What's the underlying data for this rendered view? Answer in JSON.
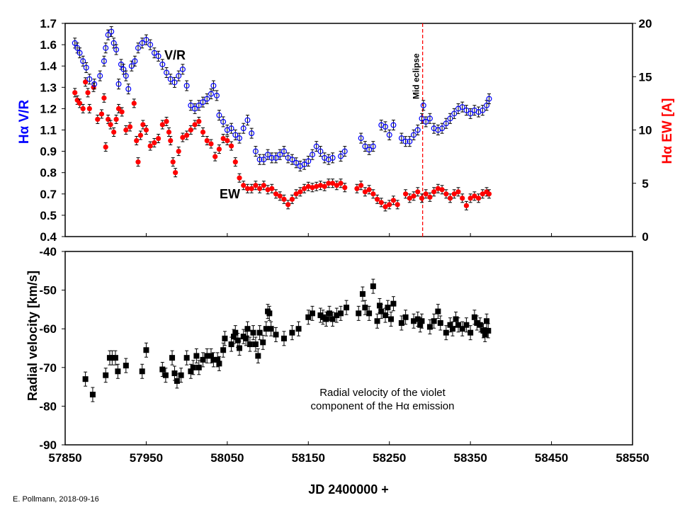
{
  "credit": "E. Pollmann, 2018-09-16",
  "colors": {
    "vr": "#0000ff",
    "ew": "#ff0000",
    "rv": "#000000",
    "eclipse_line": "#ff0000"
  },
  "chart_data": [
    {
      "type": "scatter",
      "panel": "top",
      "xlabel": "",
      "ylabel": "Hα V/R",
      "ylabel_right": "Hα EW [A]",
      "xlim": [
        57850,
        58550
      ],
      "ylim": [
        0.4,
        1.7
      ],
      "ylim_right": [
        0,
        20
      ],
      "ytick_labels": [
        "1.7",
        "1.6",
        "1.4",
        "1.3",
        "1.2",
        "1.1",
        "0.9",
        "0.8",
        "0.7",
        "0.5",
        "0.4"
      ],
      "ytick_labels_right": [
        "20",
        "15",
        "10",
        "5",
        "0"
      ],
      "grid": false,
      "annotations": {
        "vr_label": "V/R",
        "ew_label": "EW",
        "mid_eclipse": "Mid eclipse"
      },
      "mid_eclipse_jd": 58291,
      "series": [
        {
          "name": "V/R",
          "axis": "left",
          "marker": "open-circle",
          "x": [
            57862,
            57865,
            57868,
            57872,
            57876,
            57880,
            57886,
            57893,
            57898,
            57900,
            57903,
            57907,
            57910,
            57913,
            57916,
            57919,
            57922,
            57925,
            57928,
            57932,
            57936,
            57940,
            57945,
            57950,
            57955,
            57960,
            57965,
            57970,
            57975,
            57980,
            57985,
            57990,
            57995,
            58000,
            58005,
            58010,
            58015,
            58020,
            58025,
            58030,
            58033,
            58037,
            58040,
            58045,
            58050,
            58055,
            58060,
            58065,
            58070,
            58075,
            58080,
            58085,
            58090,
            58095,
            58100,
            58105,
            58110,
            58115,
            58120,
            58125,
            58130,
            58135,
            58140,
            58145,
            58150,
            58155,
            58160,
            58165,
            58170,
            58175,
            58180,
            58190,
            58195,
            58215,
            58220,
            58225,
            58230,
            58240,
            58245,
            58250,
            58255,
            58265,
            58270,
            58275,
            58280,
            58285,
            58290,
            58292,
            58295,
            58300,
            58305,
            58310,
            58315,
            58320,
            58325,
            58330,
            58335,
            58340,
            58345,
            58350,
            58355,
            58360,
            58365,
            58370,
            58373
          ],
          "y": [
            1.58,
            1.55,
            1.52,
            1.47,
            1.43,
            1.36,
            1.33,
            1.38,
            1.47,
            1.55,
            1.63,
            1.65,
            1.58,
            1.54,
            1.33,
            1.45,
            1.42,
            1.38,
            1.3,
            1.44,
            1.47,
            1.55,
            1.58,
            1.6,
            1.57,
            1.52,
            1.5,
            1.45,
            1.4,
            1.36,
            1.34,
            1.38,
            1.42,
            1.32,
            1.2,
            1.18,
            1.2,
            1.22,
            1.24,
            1.27,
            1.32,
            1.26,
            1.14,
            1.1,
            1.05,
            1.06,
            1.02,
            1.0,
            1.06,
            1.11,
            1.03,
            0.92,
            0.87,
            0.87,
            0.9,
            0.88,
            0.88,
            0.9,
            0.92,
            0.88,
            0.87,
            0.85,
            0.83,
            0.84,
            0.86,
            0.9,
            0.95,
            0.92,
            0.88,
            0.87,
            0.88,
            0.89,
            0.92,
            1.0,
            0.95,
            0.93,
            0.95,
            1.08,
            1.07,
            1.02,
            1.08,
            1.0,
            0.98,
            0.98,
            1.02,
            1.05,
            1.12,
            1.2,
            1.1,
            1.12,
            1.06,
            1.05,
            1.06,
            1.09,
            1.12,
            1.15,
            1.18,
            1.19,
            1.17,
            1.15,
            1.17,
            1.16,
            1.17,
            1.2,
            1.24
          ]
        },
        {
          "name": "EW",
          "axis": "right",
          "marker": "filled-circle",
          "x": [
            57862,
            57865,
            57868,
            57872,
            57875,
            57878,
            57880,
            57885,
            57890,
            57895,
            57898,
            57900,
            57903,
            57906,
            57910,
            57913,
            57916,
            57920,
            57925,
            57930,
            57935,
            57938,
            57940,
            57943,
            57946,
            57950,
            57955,
            57960,
            57965,
            57970,
            57975,
            57978,
            57980,
            57983,
            57986,
            57990,
            57995,
            58000,
            58005,
            58010,
            58015,
            58020,
            58025,
            58030,
            58035,
            58040,
            58045,
            58050,
            58055,
            58060,
            58065,
            58070,
            58075,
            58080,
            58085,
            58090,
            58095,
            58100,
            58105,
            58110,
            58115,
            58120,
            58125,
            58130,
            58135,
            58140,
            58145,
            58150,
            58155,
            58160,
            58165,
            58170,
            58175,
            58180,
            58185,
            58190,
            58195,
            58210,
            58215,
            58220,
            58225,
            58230,
            58235,
            58240,
            58245,
            58250,
            58255,
            58260,
            58270,
            58275,
            58280,
            58285,
            58290,
            58295,
            58300,
            58305,
            58310,
            58315,
            58320,
            58325,
            58330,
            58335,
            58340,
            58345,
            58350,
            58355,
            58360,
            58365,
            58370,
            58373
          ],
          "y": [
            13.5,
            12.8,
            12.5,
            12.0,
            14.5,
            13.5,
            12.0,
            14.0,
            11.0,
            11.5,
            13.0,
            8.4,
            11.0,
            10.5,
            9.8,
            11.0,
            12.0,
            11.7,
            10.0,
            10.3,
            12.5,
            9.0,
            7.0,
            9.5,
            10.5,
            10.0,
            8.5,
            8.8,
            9.2,
            10.5,
            10.8,
            9.8,
            9.0,
            7.0,
            6.0,
            8.0,
            9.3,
            9.5,
            10.0,
            10.5,
            10.8,
            9.8,
            9.0,
            8.7,
            7.5,
            8.2,
            9.2,
            9.0,
            8.5,
            7.0,
            5.5,
            4.8,
            4.5,
            4.5,
            4.8,
            4.5,
            4.8,
            4.4,
            4.5,
            4.0,
            3.8,
            3.5,
            3.0,
            3.5,
            4.0,
            4.2,
            4.5,
            4.7,
            4.6,
            4.7,
            4.8,
            4.7,
            5.0,
            5.0,
            4.8,
            5.0,
            4.6,
            4.5,
            4.8,
            4.2,
            4.4,
            4.0,
            3.5,
            3.2,
            2.8,
            3.0,
            3.4,
            3.0,
            4.0,
            3.6,
            3.8,
            4.2,
            3.6,
            4.0,
            3.7,
            4.2,
            4.5,
            4.4,
            4.0,
            3.6,
            4.0,
            4.2,
            3.6,
            2.9,
            3.6,
            3.8,
            3.6,
            4.0,
            4.2,
            4.0
          ]
        }
      ]
    },
    {
      "type": "scatter",
      "panel": "bottom",
      "xlabel": "JD 2400000 +",
      "ylabel": "Radial velocity [km/s]",
      "xlim": [
        57850,
        58550
      ],
      "ylim": [
        -90,
        -40
      ],
      "xticks": [
        57850,
        57950,
        58050,
        58150,
        58250,
        58350,
        58450,
        58550
      ],
      "yticks": [
        -40,
        -50,
        -60,
        -70,
        -80,
        -90
      ],
      "grid": false,
      "annotation": [
        "Radial velocity of the violet",
        "component of the Hα emission"
      ],
      "series": [
        {
          "marker": "filled-square",
          "x": [
            57875,
            57884,
            57900,
            57905,
            57908,
            57912,
            57915,
            57925,
            57945,
            57950,
            57970,
            57974,
            57982,
            57985,
            57988,
            57993,
            58000,
            58005,
            58008,
            58012,
            58015,
            58020,
            58025,
            58030,
            58033,
            58038,
            58040,
            58045,
            58047,
            58055,
            58058,
            58060,
            58063,
            58065,
            58070,
            58073,
            58075,
            58078,
            58082,
            58085,
            58088,
            58090,
            58094,
            58098,
            58100,
            58102,
            58104,
            58110,
            58120,
            58130,
            58138,
            58150,
            58155,
            58165,
            58168,
            58172,
            58176,
            58180,
            58185,
            58190,
            58197,
            58212,
            58217,
            58220,
            58225,
            58230,
            58235,
            58238,
            58240,
            58245,
            58248,
            58252,
            58255,
            58265,
            58270,
            58280,
            58285,
            58288,
            58290,
            58300,
            58305,
            58310,
            58313,
            58320,
            58325,
            58328,
            58332,
            58335,
            58340,
            58345,
            58350,
            58355,
            58358,
            58362,
            58366,
            58368,
            58370,
            58372
          ],
          "y": [
            -73,
            -77,
            -72,
            -67.5,
            -67.5,
            -67.5,
            -71,
            -69.5,
            -71,
            -65.5,
            -70.5,
            -72,
            -67.5,
            -71.5,
            -73.5,
            -72,
            -67.5,
            -71,
            -70,
            -67,
            -70,
            -68,
            -67,
            -67,
            -68,
            -68,
            -69,
            -65.5,
            -62.5,
            -64,
            -62,
            -61,
            -63,
            -65,
            -62,
            -62.5,
            -60,
            -64,
            -61,
            -64,
            -67,
            -61,
            -63.5,
            -60,
            -55.5,
            -56,
            -60,
            -61.5,
            -62.5,
            -61,
            -60,
            -57,
            -56,
            -56.5,
            -57,
            -57.5,
            -56,
            -57.5,
            -56.5,
            -56,
            -54.5,
            -56,
            -51,
            -54.5,
            -56,
            -49,
            -58,
            -54,
            -55.5,
            -56.5,
            -54.5,
            -57.5,
            -53.5,
            -58.5,
            -57,
            -58,
            -57.5,
            -59,
            -58,
            -59.5,
            -58,
            -55.5,
            -58.5,
            -61,
            -59,
            -60,
            -57.5,
            -59,
            -60,
            -59,
            -61,
            -57,
            -58.5,
            -59,
            -60.5,
            -61.5,
            -58,
            -60.5
          ]
        }
      ]
    }
  ]
}
